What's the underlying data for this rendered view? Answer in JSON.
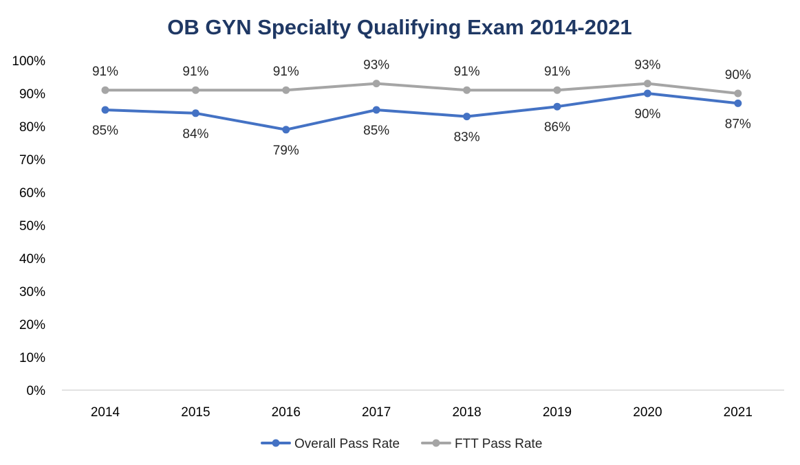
{
  "chart_data": {
    "type": "line",
    "title": "OB GYN Specialty Qualifying Exam 2014-2021",
    "title_color": "#1f3864",
    "categories": [
      "2014",
      "2015",
      "2016",
      "2017",
      "2018",
      "2019",
      "2020",
      "2021"
    ],
    "ylim": [
      0,
      100
    ],
    "y_ticks": [
      0,
      10,
      20,
      30,
      40,
      50,
      60,
      70,
      80,
      90,
      100
    ],
    "y_tick_labels": [
      "0%",
      "10%",
      "20%",
      "30%",
      "40%",
      "50%",
      "60%",
      "70%",
      "80%",
      "90%",
      "100%"
    ],
    "grid": false,
    "legend_position": "bottom",
    "series": [
      {
        "name": "Overall Pass Rate",
        "color": "#4472c4",
        "values": [
          85,
          84,
          79,
          85,
          83,
          86,
          90,
          87
        ],
        "labels": [
          "85%",
          "84%",
          "79%",
          "85%",
          "83%",
          "86%",
          "90%",
          "87%"
        ],
        "label_side": "below"
      },
      {
        "name": "FTT Pass Rate",
        "color": "#a5a5a5",
        "values": [
          91,
          91,
          91,
          93,
          91,
          91,
          93,
          90
        ],
        "labels": [
          "91%",
          "91%",
          "91%",
          "93%",
          "91%",
          "91%",
          "93%",
          "90%"
        ],
        "label_side": "above"
      }
    ]
  }
}
